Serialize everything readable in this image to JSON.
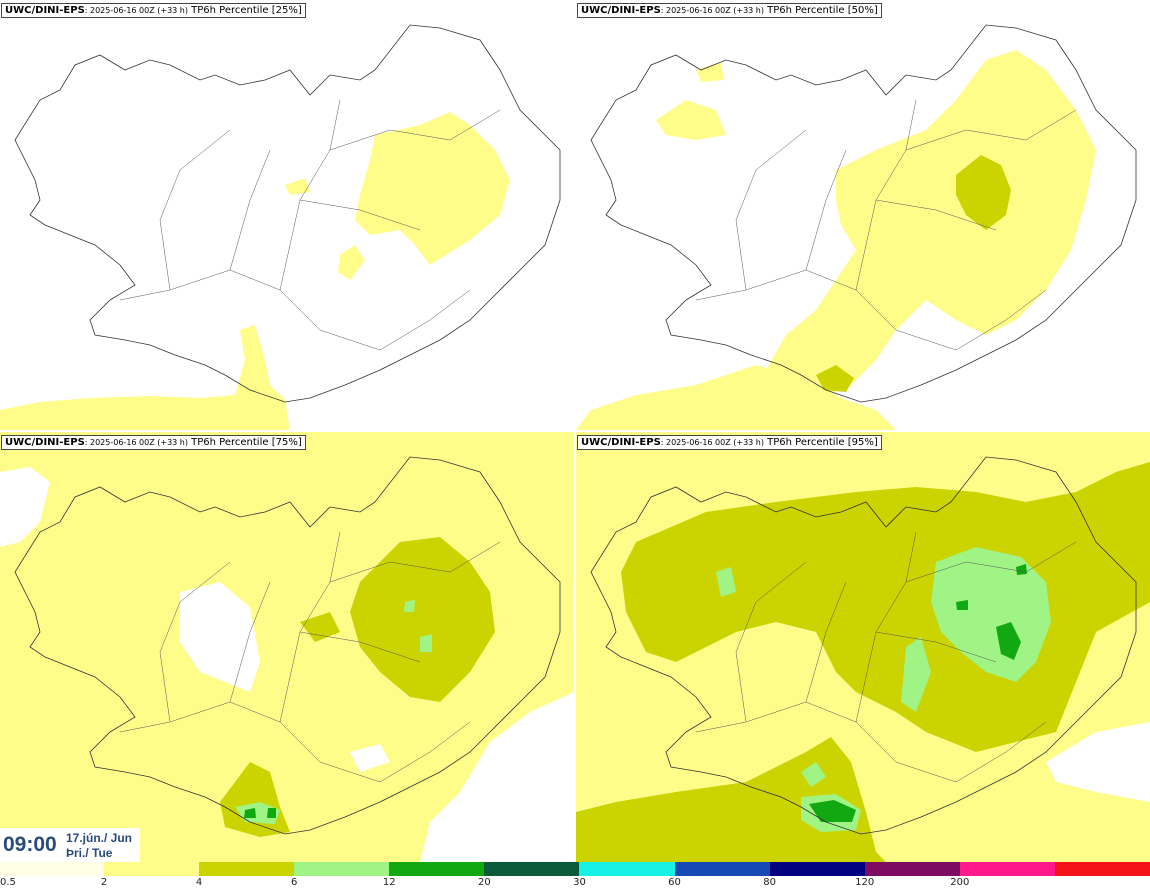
{
  "panels": [
    {
      "model": "UWC/DINI-EPS",
      "run": ": 2025-06-16 00Z (+33 h)",
      "field": " TP6h Percentile [25%]"
    },
    {
      "model": "UWC/DINI-EPS",
      "run": ": 2025-06-16 00Z (+33 h)",
      "field": " TP6h Percentile [50%]"
    },
    {
      "model": "UWC/DINI-EPS",
      "run": ": 2025-06-16 00Z (+33 h)",
      "field": " TP6h Percentile [75%]"
    },
    {
      "model": "UWC/DINI-EPS",
      "run": ": 2025-06-16 00Z (+33 h)",
      "field": " TP6h Percentile [95%]"
    }
  ],
  "valid_time": {
    "time": "09:00",
    "date_line1": "17.jún./ Jun",
    "date_line2": "Þri./ Tue"
  },
  "legend": {
    "ticks": [
      "0.5",
      "2",
      "4",
      "6",
      "12",
      "20",
      "30",
      "60",
      "80",
      "120",
      "200"
    ],
    "colors": [
      "#ffffe6",
      "#fefd8a",
      "#cbd400",
      "#a0f486",
      "#11a811",
      "#0b5a3a",
      "#18f2e6",
      "#1749b6",
      "#000080",
      "#7e0a64",
      "#ff1a8c",
      "#f5131a"
    ]
  },
  "map_colors": {
    "l1": "#fefd8a",
    "l2": "#cbd400",
    "l3": "#a0f486",
    "l4": "#11a811",
    "coast": "#333333"
  }
}
